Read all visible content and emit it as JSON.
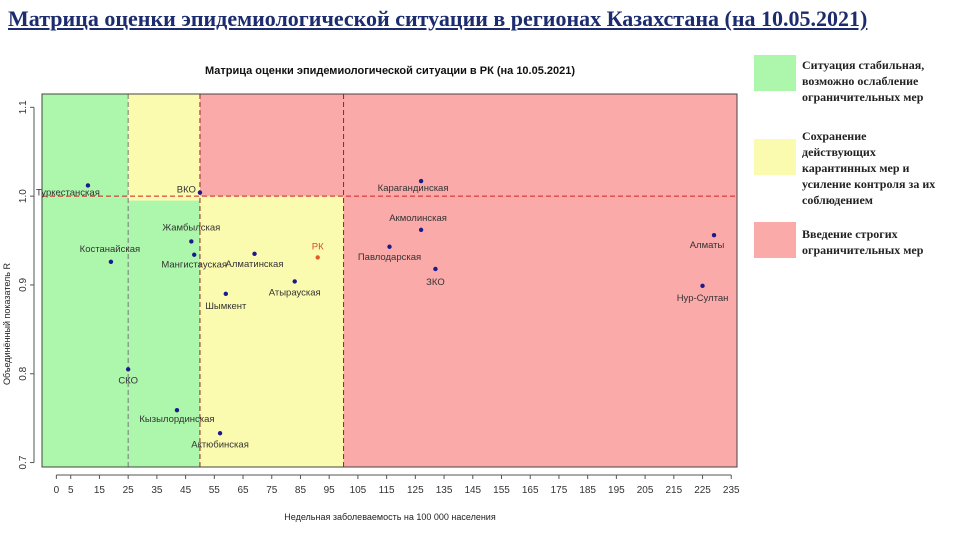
{
  "page_title": "Матрица оценки эпидемиологической ситуации в регионах Казахстана (на 10.05.2021)",
  "legend": [
    {
      "color": "#adf7ad",
      "text": "Ситуация стабильная,\nвозможно ослабление\nограничительных мер"
    },
    {
      "color": "#fbfbb0",
      "text": "Сохранение\nдействующих\nкарантинных мер и\nусиление контроля за их\nсоблюдением"
    },
    {
      "color": "#fbaaaa",
      "text": "Введение строгих\nограничительных мер"
    }
  ],
  "chart_data": {
    "type": "scatter",
    "title": "Матрица оценки эпидемиологической ситуации в РК (на 10.05.2021)",
    "xlabel": "Недельная заболеваемость на 100 000 населения",
    "ylabel": "Объединённый показатель R",
    "xlim": [
      -5,
      237
    ],
    "ylim": [
      0.695,
      1.115
    ],
    "x_ticks": [
      0,
      5,
      15,
      25,
      35,
      45,
      55,
      65,
      75,
      85,
      95,
      105,
      115,
      125,
      135,
      145,
      155,
      165,
      175,
      185,
      195,
      205,
      215,
      225,
      235
    ],
    "y_ticks": [
      0.7,
      0.8,
      0.9,
      1.0,
      1.1
    ],
    "y_tick_labels": [
      "0.7",
      "0.8",
      "0.9",
      "1.0",
      "1.1"
    ],
    "zones": [
      {
        "from": -5,
        "to": 50,
        "color": "#adf7ad"
      },
      {
        "from": 50,
        "to": 237,
        "color": "#fbaaaa"
      },
      {
        "from": 25,
        "to": 50,
        "ymin": 0.995,
        "ymax": 1.115,
        "color": "#fbfbb0"
      },
      {
        "from": 50,
        "to": 100,
        "ymin": 0.695,
        "ymax": 1.0,
        "color": "#fbfbb0"
      }
    ],
    "threshold_lines": {
      "vertical": [
        25,
        50,
        100
      ],
      "horizontal": [
        1.0
      ]
    },
    "points": [
      {
        "label": "Туркестанская",
        "x": 11,
        "y": 1.012,
        "color": "#1a1a8c"
      },
      {
        "label": "ВКО",
        "x": 50,
        "y": 1.004,
        "color": "#1a1a8c"
      },
      {
        "label": "Карагандинская",
        "x": 127,
        "y": 1.017,
        "color": "#1a1a8c"
      },
      {
        "label": "Акмолинская",
        "x": 127,
        "y": 0.962,
        "color": "#1a1a8c"
      },
      {
        "label": "Жамбылская",
        "x": 47,
        "y": 0.949,
        "color": "#1a1a8c"
      },
      {
        "label": "Мангистауская",
        "x": 48,
        "y": 0.934,
        "color": "#1a1a8c"
      },
      {
        "label": "Костанайская",
        "x": 19,
        "y": 0.926,
        "color": "#1a1a8c"
      },
      {
        "label": "Алматинская",
        "x": 69,
        "y": 0.935,
        "color": "#1a1a8c"
      },
      {
        "label": "РК",
        "x": 91,
        "y": 0.931,
        "color": "#e05a2b"
      },
      {
        "label": "Павлодарская",
        "x": 116,
        "y": 0.943,
        "color": "#1a1a8c"
      },
      {
        "label": "ЗКО",
        "x": 132,
        "y": 0.918,
        "color": "#1a1a8c"
      },
      {
        "label": "Алматы",
        "x": 229,
        "y": 0.956,
        "color": "#1a1a8c"
      },
      {
        "label": "Нур-Султан",
        "x": 225,
        "y": 0.899,
        "color": "#1a1a8c"
      },
      {
        "label": "Атырауская",
        "x": 83,
        "y": 0.904,
        "color": "#1a1a8c"
      },
      {
        "label": "Шымкент",
        "x": 59,
        "y": 0.89,
        "color": "#1a1a8c"
      },
      {
        "label": "СКО",
        "x": 25,
        "y": 0.805,
        "color": "#1a1a8c"
      },
      {
        "label": "Кызылординская",
        "x": 42,
        "y": 0.759,
        "color": "#1a1a8c"
      },
      {
        "label": "Актюбинская",
        "x": 57,
        "y": 0.733,
        "color": "#1a1a8c"
      }
    ]
  }
}
